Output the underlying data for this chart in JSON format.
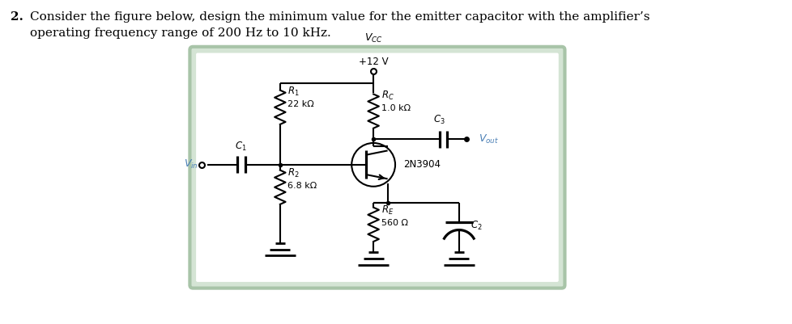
{
  "title_line1": "Consider the figure below, design the minimum value for the emitter capacitor with the amplifier’s",
  "title_line2": "operating frequency range of 200 Hz to 10 kHz.",
  "vcc_val": "+12 V",
  "rc_val": "1.0 kΩ",
  "r1_val": "22 kΩ",
  "r2_val": "6.8 kΩ",
  "re_val": "560 Ω",
  "transistor_label": "2N3904",
  "bg_color": "#ccdacc",
  "line_color": "#000000",
  "vout_color": "#4a7fb5",
  "vin_color": "#4a7fb5",
  "figwidth": 9.79,
  "figheight": 4.01
}
